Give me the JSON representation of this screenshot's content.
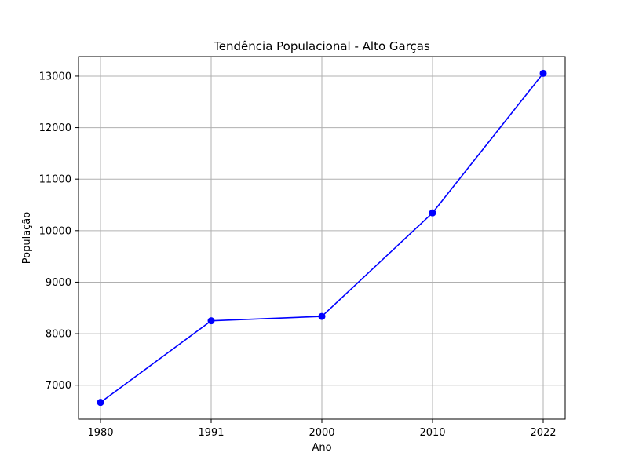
{
  "chart_data": {
    "type": "line",
    "title": "Tendência Populacional - Alto Garças",
    "xlabel": "Ano",
    "ylabel": "População",
    "categories": [
      "1980",
      "1991",
      "2000",
      "2010",
      "2022"
    ],
    "series": [
      {
        "values": [
          6665,
          8250,
          8335,
          10345,
          13055
        ],
        "color": "#0000ff",
        "marker": "circle"
      }
    ],
    "yticks": [
      7000,
      8000,
      9000,
      10000,
      11000,
      12000,
      13000
    ],
    "ytick_labels": [
      "7000",
      "8000",
      "9000",
      "10000",
      "11000",
      "12000",
      "13000"
    ],
    "ylim": [
      6340,
      13380
    ],
    "grid": true,
    "legend": false
  }
}
